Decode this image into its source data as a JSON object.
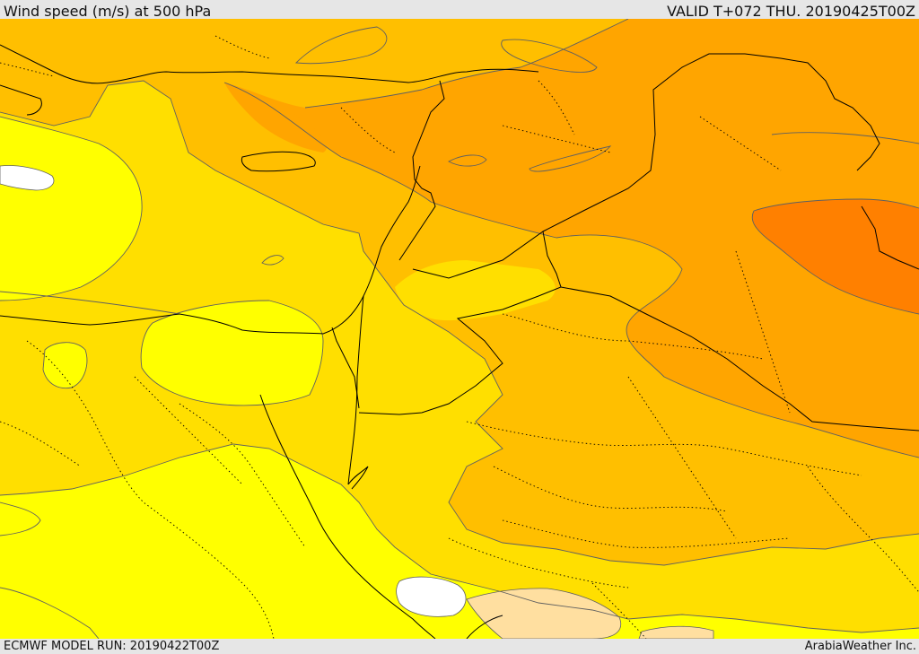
{
  "header": {
    "title": "Wind speed (m/s) at 500 hPa",
    "valid": "VALID T+072 THU. 20190425T00Z"
  },
  "footer": {
    "model_run": "ECMWF MODEL RUN: 20190422T00Z",
    "credit": "ArabiaWeather Inc."
  },
  "colors": {
    "band_lowest": "#ffffff",
    "band_1": "#ffff00",
    "band_2": "#ffdf00",
    "band_3": "#ffbf00",
    "band_4": "#ffa500",
    "band_5": "#ff8000",
    "band_peach": "#ffdfa0",
    "coastline": "#000000",
    "contour": "#606060"
  }
}
